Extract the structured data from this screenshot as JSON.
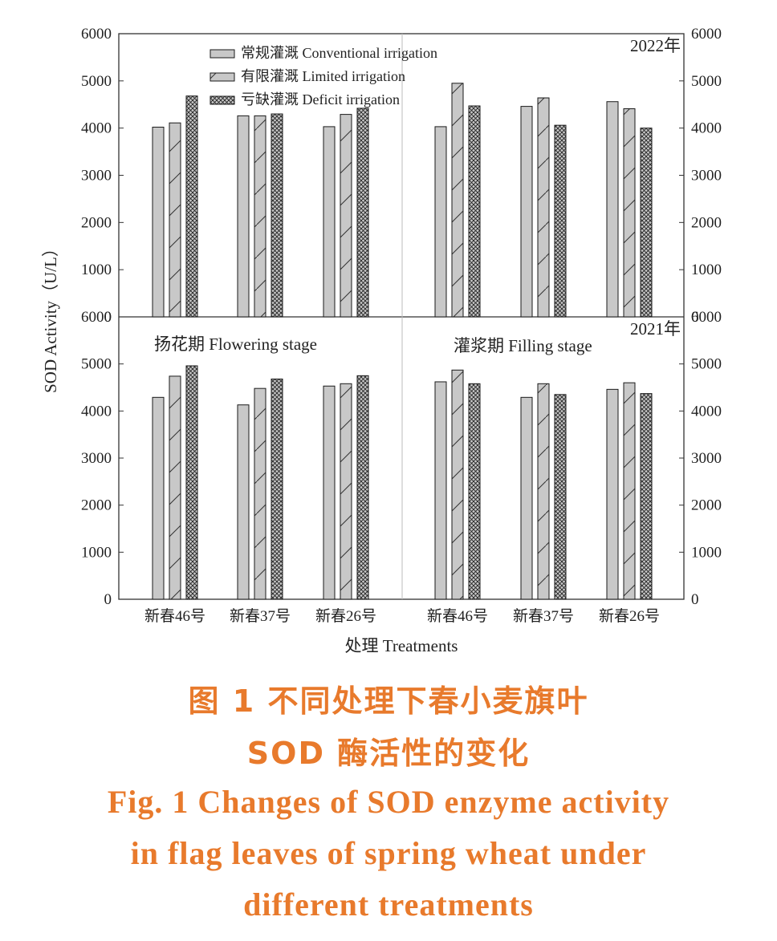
{
  "chart_data": {
    "type": "bar",
    "ylabel": "SOD Activity（U/L）",
    "xlabel": "处理 Treatments",
    "ylim": [
      0,
      6000
    ],
    "yticks": [
      0,
      1000,
      2000,
      3000,
      4000,
      5000,
      6000
    ],
    "stage_labels": [
      "扬花期  Flowering stage",
      "灌浆期  Filling stage"
    ],
    "categories": [
      "新春46号",
      "新春37号",
      "新春26号",
      "新春46号",
      "新春37号",
      "新春26号"
    ],
    "legend_position": "top-left",
    "series_names": [
      "常规灌溉  Conventional irrigation",
      "有限灌溉  Limited irrigation",
      "亏缺灌溉  Deficit irrigation"
    ],
    "series_patterns": [
      "solid",
      "hatch",
      "crosshatch"
    ],
    "panels": [
      {
        "year": "2022年",
        "series": [
          {
            "name": "常规灌溉  Conventional irrigation",
            "values": [
              4020,
              4260,
              4030,
              4030,
              4460,
              4560
            ]
          },
          {
            "name": "有限灌溉  Limited irrigation",
            "values": [
              4110,
              4260,
              4290,
              4950,
              4640,
              4410
            ]
          },
          {
            "name": "亏缺灌溉  Deficit irrigation",
            "values": [
              4680,
              4300,
              4420,
              4470,
              4060,
              4000
            ]
          }
        ]
      },
      {
        "year": "2021年",
        "series": [
          {
            "name": "常规灌溉  Conventional irrigation",
            "values": [
              4290,
              4130,
              4530,
              4620,
              4290,
              4460
            ]
          },
          {
            "name": "有限灌溉  Limited irrigation",
            "values": [
              4740,
              4480,
              4580,
              4870,
              4580,
              4600
            ]
          },
          {
            "name": "亏缺灌溉  Deficit irrigation",
            "values": [
              4960,
              4680,
              4750,
              4580,
              4350,
              4370
            ]
          }
        ]
      }
    ]
  },
  "caption": {
    "zh_line1": "图 1    不同处理下春小麦旗叶",
    "zh_line2": "SOD 酶活性的变化",
    "en_line1": "Fig. 1    Changes of SOD enzyme activity",
    "en_line2": "in flag leaves of spring wheat under",
    "en_line3": "different treatments"
  },
  "colors": {
    "bar_fill": "#c8c8c8",
    "bar_stroke": "#1a1a1a",
    "axis": "#333333",
    "caption": "#e87a2c"
  }
}
